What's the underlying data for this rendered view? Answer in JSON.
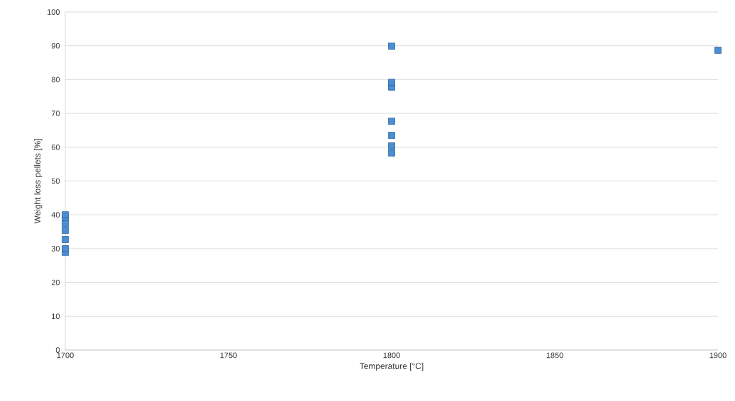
{
  "chart_data": {
    "type": "scatter",
    "xlabel": "Temperature [°C]",
    "ylabel": "Weight loss pellets [%]",
    "x": [
      1700,
      1700,
      1700,
      1700,
      1700,
      1700,
      1700,
      1800,
      1800,
      1800,
      1800,
      1800,
      1800,
      1800,
      1900
    ],
    "values": [
      40,
      39.2,
      37.5,
      35.4,
      32.7,
      30,
      28.9,
      89.9,
      79.2,
      77.8,
      67.7,
      63.5,
      60.4,
      58.3,
      88.7
    ],
    "color": "#4a8ed6",
    "marker": "square",
    "grid": "y",
    "xlim": [
      1700,
      1900
    ],
    "xticks": [
      1700,
      1750,
      1800,
      1850,
      1900
    ],
    "ylim": [
      0,
      100
    ],
    "yticks": [
      0,
      10,
      20,
      30,
      40,
      50,
      60,
      70,
      80,
      90,
      100
    ]
  }
}
